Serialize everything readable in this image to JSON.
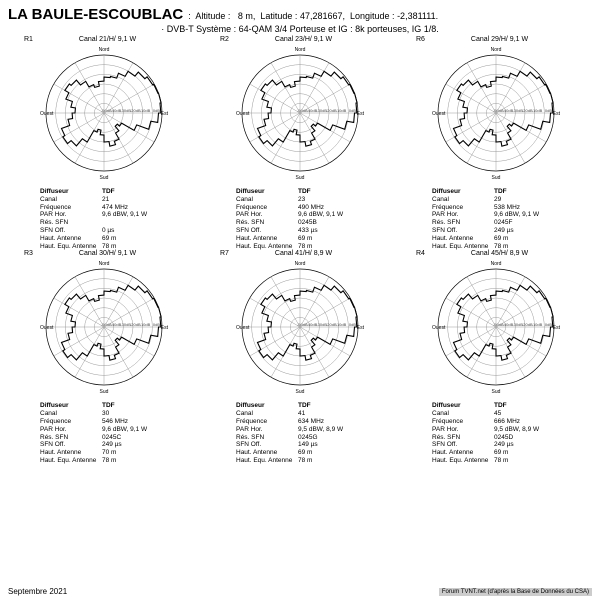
{
  "header": {
    "location": "LA BAULE-ESCOUBLAC",
    "altitude_label": "Altitude :",
    "altitude_value": "8  m,",
    "lat_label": "Latitude :",
    "lat_value": "47,281667,",
    "lon_label": "Longitude :",
    "lon_value": "-2,381111.",
    "line2": "· DVB-T   Système : 64-QAM 3/4   Porteuse et IG : 8k porteuses, IG 1/8."
  },
  "polar_style": {
    "rings": [
      0.166,
      0.333,
      0.5,
      0.666,
      0.833,
      1.0
    ],
    "ring_labels": [
      "-50dB",
      "-40dB",
      "-30dB",
      "-20dB",
      "-10dB",
      "0dB"
    ],
    "ring_stroke": "#999999",
    "ring_stroke_width": 0.5,
    "spokes": 12,
    "spoke_stroke": "#999999",
    "spoke_stroke_width": 0.5,
    "outline_stroke": "#000000",
    "outline_stroke_width": 0.7,
    "curve_stroke": "#000000",
    "curve_stroke_width": 1.1,
    "curve_fill": "none",
    "compass": {
      "n": "Nord",
      "s": "Sud",
      "e": "Est",
      "w": "Ouest"
    }
  },
  "antenna_pattern_radii": [
    0.62,
    0.64,
    0.73,
    0.83,
    0.92,
    0.97,
    0.99,
    1.0,
    0.98,
    0.94,
    0.82,
    0.6,
    0.35,
    0.3,
    0.4,
    0.52,
    0.58,
    0.5,
    0.38,
    0.3,
    0.35,
    0.58,
    0.74,
    0.82,
    0.78,
    0.63,
    0.55,
    0.5,
    0.58,
    0.7,
    0.78,
    0.74,
    0.63,
    0.52,
    0.47,
    0.55
  ],
  "info_labels": {
    "diffuseur": "Diffuseur",
    "canal": "Canal",
    "freq": "Fréquence",
    "par": "PAR Hor.",
    "res": "Rés. SFN",
    "sfn": "SFN Off.",
    "haut_ant": "Haut. Antenne",
    "haut_equ": "Haut. Equ. Antenne"
  },
  "cells": [
    {
      "ref": "R1",
      "title": "Canal 21/H/ 9,1 W",
      "diffuseur": "TDF",
      "canal": "21",
      "freq": "474 MHz",
      "par": "9,6 dBW, 9,1 W",
      "res": "",
      "sfn": "0 µs",
      "haut_ant": "69 m",
      "haut_equ": "78 m"
    },
    {
      "ref": "R2",
      "title": "Canal 23/H/ 9,1 W",
      "diffuseur": "TDF",
      "canal": "23",
      "freq": "490 MHz",
      "par": "9,6 dBW, 9,1 W",
      "res": "0245B",
      "sfn": "433 µs",
      "haut_ant": "69 m",
      "haut_equ": "78 m"
    },
    {
      "ref": "R6",
      "title": "Canal 29/H/ 9,1 W",
      "diffuseur": "TDF",
      "canal": "29",
      "freq": "538 MHz",
      "par": "9,6 dBW, 9,1 W",
      "res": "0245F",
      "sfn": "249 µs",
      "haut_ant": "69 m",
      "haut_equ": "78 m"
    },
    {
      "ref": "R3",
      "title": "Canal 30/H/ 9,1 W",
      "diffuseur": "TDF",
      "canal": "30",
      "freq": "546 MHz",
      "par": "9,6 dBW, 9,1 W",
      "res": "0245C",
      "sfn": "249 µs",
      "haut_ant": "70 m",
      "haut_equ": "78 m"
    },
    {
      "ref": "R7",
      "title": "Canal 41/H/ 8,9 W",
      "diffuseur": "TDF",
      "canal": "41",
      "freq": "634 MHz",
      "par": "9,5 dBW, 8,9 W",
      "res": "0245G",
      "sfn": "149 µs",
      "haut_ant": "69 m",
      "haut_equ": "78 m"
    },
    {
      "ref": "R4",
      "title": "Canal 45/H/ 8,9 W",
      "diffuseur": "TDF",
      "canal": "45",
      "freq": "666 MHz",
      "par": "9,5 dBW, 8,9 W",
      "res": "0245D",
      "sfn": "249 µs",
      "haut_ant": "69 m",
      "haut_equ": "78 m"
    }
  ],
  "footer": {
    "date": "Septembre 2021",
    "credit": "Forum TVNT.net (d'après la Base de Données du CSA)"
  }
}
